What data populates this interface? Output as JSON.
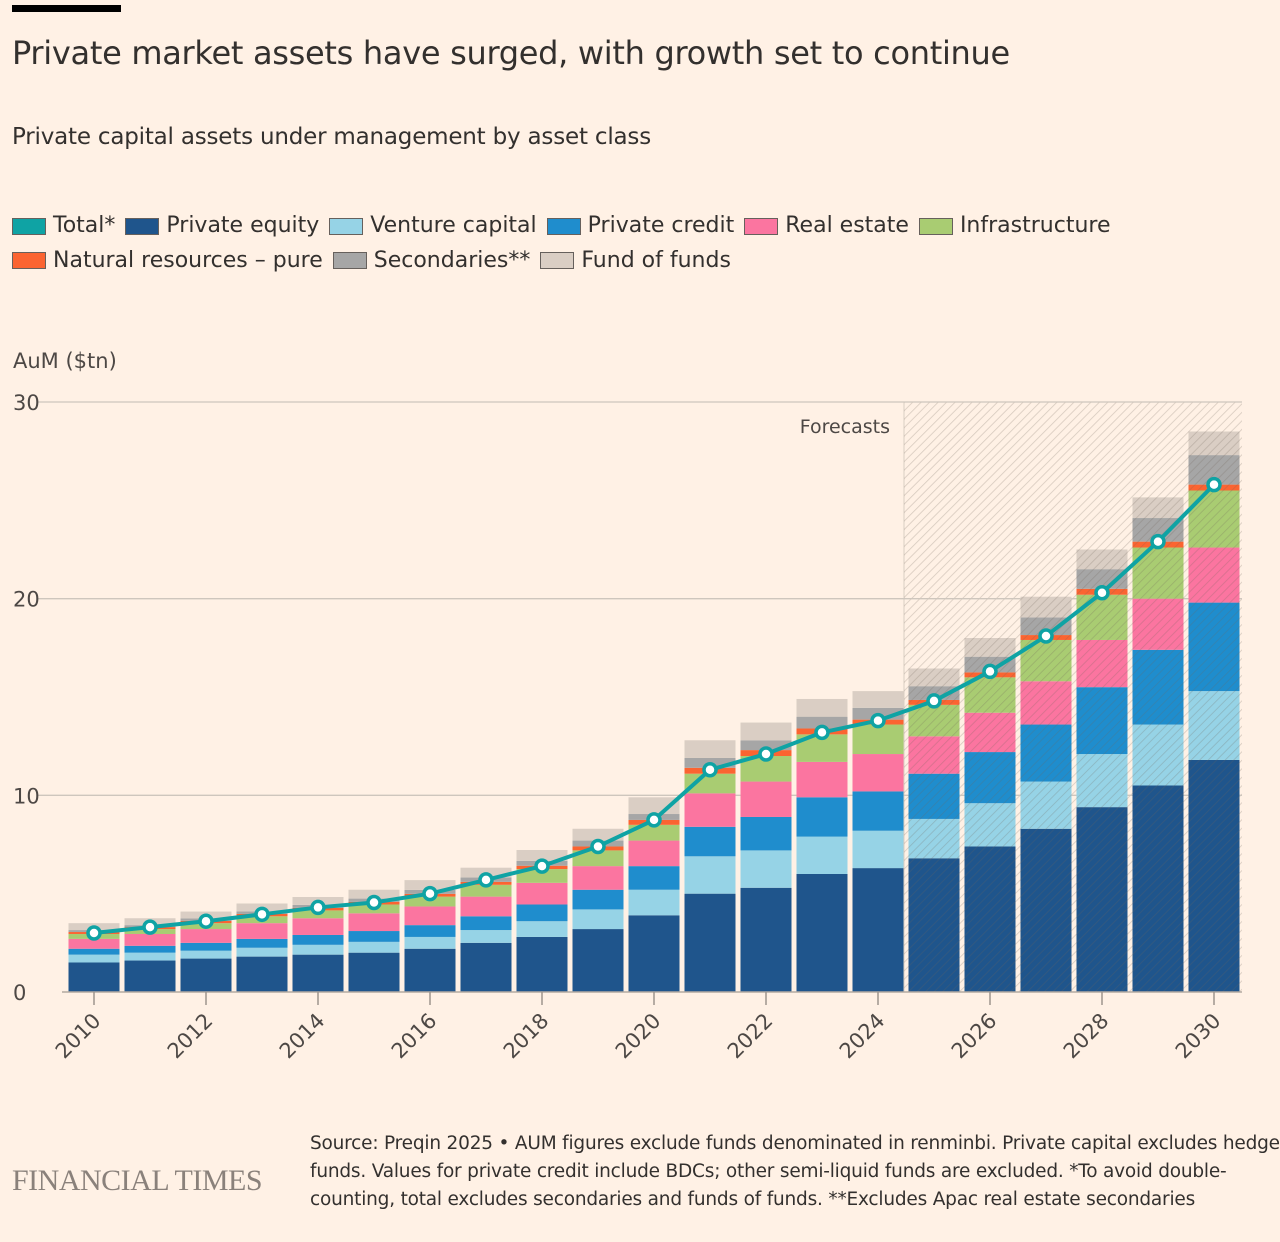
{
  "header": {
    "title": "Private market assets have surged, with growth set to continue",
    "subtitle": "Private capital assets under management by asset class"
  },
  "legend": [
    {
      "key": "total",
      "label": "Total*",
      "color": "#0fa3a4"
    },
    {
      "key": "pe",
      "label": "Private equity",
      "color": "#1f558c"
    },
    {
      "key": "vc",
      "label": "Venture capital",
      "color": "#96d3e6"
    },
    {
      "key": "pc",
      "label": "Private credit",
      "color": "#1f8dcd"
    },
    {
      "key": "re",
      "label": "Real estate",
      "color": "#fb75a0"
    },
    {
      "key": "infra",
      "label": "Infrastructure",
      "color": "#a9cc72"
    },
    {
      "key": "nr",
      "label": "Natural resources – pure",
      "color": "#fb6431"
    },
    {
      "key": "sec",
      "label": "Secondaries**",
      "color": "#a6a6a6"
    },
    {
      "key": "fof",
      "label": "Fund of funds",
      "color": "#dacec4"
    }
  ],
  "chart_data": {
    "type": "bar",
    "stacked": true,
    "title": "Private capital assets under management by asset class",
    "xlabel": "",
    "ylabel": "AuM ($tn)",
    "ylim": [
      0,
      30
    ],
    "yticks": [
      0,
      10,
      20,
      30
    ],
    "grid": true,
    "forecast_label": "Forecasts",
    "forecast_start": 2025,
    "categories": [
      2010,
      2011,
      2012,
      2013,
      2014,
      2015,
      2016,
      2017,
      2018,
      2019,
      2020,
      2021,
      2022,
      2023,
      2024,
      2025,
      2026,
      2027,
      2028,
      2029,
      2030
    ],
    "xtick_labels": [
      "2010",
      "2012",
      "2014",
      "2016",
      "2018",
      "2020",
      "2022",
      "2024",
      "2026",
      "2028",
      "2030"
    ],
    "series": [
      {
        "key": "pe",
        "name": "Private equity",
        "values": [
          1.5,
          1.6,
          1.7,
          1.8,
          1.9,
          2.0,
          2.2,
          2.5,
          2.8,
          3.2,
          3.9,
          5.0,
          5.3,
          6.0,
          6.3,
          6.8,
          7.4,
          8.3,
          9.4,
          10.5,
          11.8
        ]
      },
      {
        "key": "vc",
        "name": "Venture capital",
        "values": [
          0.4,
          0.4,
          0.4,
          0.45,
          0.5,
          0.55,
          0.6,
          0.65,
          0.8,
          1.0,
          1.3,
          1.9,
          1.9,
          1.9,
          1.9,
          2.0,
          2.2,
          2.4,
          2.7,
          3.1,
          3.5
        ]
      },
      {
        "key": "pc",
        "name": "Private credit",
        "values": [
          0.3,
          0.35,
          0.4,
          0.45,
          0.5,
          0.55,
          0.6,
          0.7,
          0.85,
          1.0,
          1.2,
          1.5,
          1.7,
          2.0,
          2.0,
          2.3,
          2.6,
          2.9,
          3.4,
          3.8,
          4.5
        ]
      },
      {
        "key": "re",
        "name": "Real estate",
        "values": [
          0.5,
          0.6,
          0.7,
          0.8,
          0.85,
          0.9,
          0.95,
          1.0,
          1.1,
          1.2,
          1.3,
          1.7,
          1.8,
          1.8,
          1.9,
          1.9,
          2.0,
          2.2,
          2.4,
          2.6,
          2.8
        ]
      },
      {
        "key": "infra",
        "name": "Infrastructure",
        "values": [
          0.25,
          0.25,
          0.3,
          0.35,
          0.4,
          0.45,
          0.5,
          0.6,
          0.7,
          0.8,
          0.8,
          1.0,
          1.3,
          1.4,
          1.5,
          1.6,
          1.8,
          2.1,
          2.3,
          2.6,
          2.9
        ]
      },
      {
        "key": "nr",
        "name": "Natural resources – pure",
        "values": [
          0.1,
          0.1,
          0.12,
          0.12,
          0.13,
          0.13,
          0.14,
          0.15,
          0.17,
          0.2,
          0.25,
          0.3,
          0.3,
          0.3,
          0.25,
          0.25,
          0.25,
          0.25,
          0.3,
          0.3,
          0.3
        ]
      },
      {
        "key": "sec",
        "name": "Secondaries**",
        "values": [
          0.1,
          0.1,
          0.12,
          0.13,
          0.15,
          0.17,
          0.2,
          0.22,
          0.25,
          0.3,
          0.3,
          0.5,
          0.5,
          0.6,
          0.6,
          0.7,
          0.8,
          0.9,
          1.0,
          1.2,
          1.5
        ]
      },
      {
        "key": "fof",
        "name": "Fund of funds",
        "values": [
          0.35,
          0.35,
          0.35,
          0.4,
          0.4,
          0.45,
          0.5,
          0.5,
          0.55,
          0.6,
          0.85,
          0.9,
          0.9,
          0.9,
          0.85,
          0.9,
          0.95,
          1.05,
          1.0,
          1.05,
          1.2
        ]
      }
    ],
    "line_series": {
      "key": "total",
      "name": "Total*",
      "values": [
        3.0,
        3.3,
        3.6,
        3.95,
        4.3,
        4.55,
        5.0,
        5.7,
        6.4,
        7.4,
        8.75,
        11.3,
        12.1,
        13.2,
        13.8,
        14.8,
        16.3,
        18.1,
        20.3,
        22.9,
        25.8
      ]
    }
  },
  "footer": {
    "logo": "FINANCIAL TIMES",
    "note": "Source: Preqin 2025 • AUM figures exclude funds denominated in renminbi. Private capital excludes hedge funds. Values for private credit include BDCs; other semi-liquid funds are excluded. *To avoid double-counting, total excludes secondaries and funds of funds. **Excludes Apac real estate secondaries"
  }
}
